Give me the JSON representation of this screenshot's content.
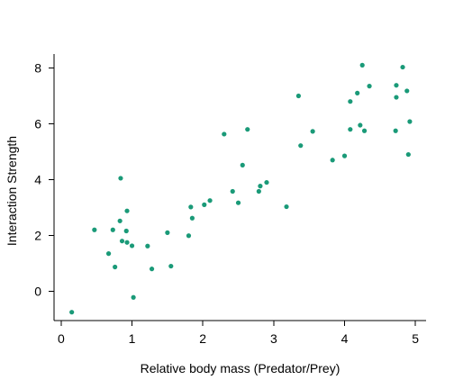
{
  "chart_data": {
    "type": "scatter",
    "title": "",
    "xlabel": "Relative body mass (Predator/Prey)",
    "ylabel": "Interaction Strength",
    "xlim": [
      -0.1,
      5.15
    ],
    "ylim": [
      -1.05,
      8.5
    ],
    "x_ticks": [
      "0",
      "1",
      "2",
      "3",
      "4",
      "5"
    ],
    "y_ticks": [
      "0",
      "2",
      "4",
      "6",
      "8"
    ],
    "grid": false,
    "legend": "none",
    "point_color": "#1a9a78",
    "series": [
      {
        "points": [
          [
            0.15,
            -0.75
          ],
          [
            0.47,
            2.2
          ],
          [
            0.67,
            1.35
          ],
          [
            0.73,
            2.2
          ],
          [
            0.76,
            0.87
          ],
          [
            0.83,
            2.52
          ],
          [
            0.84,
            4.05
          ],
          [
            0.86,
            1.8
          ],
          [
            0.92,
            2.16
          ],
          [
            0.93,
            2.88
          ],
          [
            0.93,
            1.75
          ],
          [
            1.0,
            1.63
          ],
          [
            1.02,
            -0.22
          ],
          [
            1.22,
            1.62
          ],
          [
            1.28,
            0.8
          ],
          [
            1.5,
            2.1
          ],
          [
            1.55,
            0.9
          ],
          [
            1.8,
            1.99
          ],
          [
            1.83,
            3.02
          ],
          [
            1.85,
            2.62
          ],
          [
            2.02,
            3.1
          ],
          [
            2.1,
            3.25
          ],
          [
            2.3,
            5.63
          ],
          [
            2.42,
            3.58
          ],
          [
            2.5,
            3.17
          ],
          [
            2.56,
            4.52
          ],
          [
            2.63,
            5.8
          ],
          [
            2.79,
            3.58
          ],
          [
            2.81,
            3.77
          ],
          [
            2.9,
            3.9
          ],
          [
            3.18,
            3.03
          ],
          [
            3.35,
            7.0
          ],
          [
            3.38,
            5.22
          ],
          [
            3.55,
            5.73
          ],
          [
            3.83,
            4.7
          ],
          [
            4.0,
            4.85
          ],
          [
            4.08,
            5.8
          ],
          [
            4.08,
            6.8
          ],
          [
            4.18,
            7.1
          ],
          [
            4.22,
            5.95
          ],
          [
            4.25,
            8.1
          ],
          [
            4.28,
            5.75
          ],
          [
            4.35,
            7.35
          ],
          [
            4.72,
            5.75
          ],
          [
            4.73,
            7.38
          ],
          [
            4.73,
            6.95
          ],
          [
            4.82,
            8.03
          ],
          [
            4.88,
            7.18
          ],
          [
            4.9,
            4.9
          ],
          [
            4.92,
            6.08
          ]
        ]
      }
    ]
  }
}
